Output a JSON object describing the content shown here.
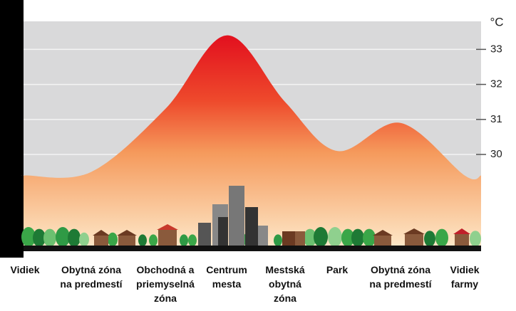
{
  "chart_data": {
    "type": "area",
    "y_axis_label": "°C",
    "categories": [
      "Vidiek",
      "Obytná zóna na predmestí",
      "Obchodná a priemyselná zóna",
      "Centrum mesta",
      "Mestská obytná zóna",
      "Park",
      "Obytná zóna na predmestí",
      "Vidiek farmy"
    ],
    "values": [
      29.4,
      29.5,
      31.3,
      33.4,
      31.5,
      30.1,
      30.9,
      29.4
    ],
    "ylim": [
      27.4,
      33.8
    ],
    "yticks": [
      30,
      31,
      32,
      33
    ],
    "grid": true
  }
}
